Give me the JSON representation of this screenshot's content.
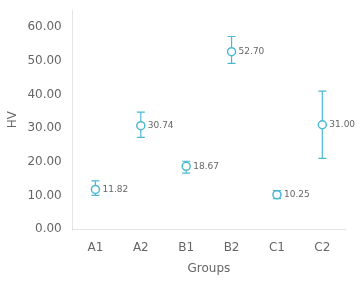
{
  "chart_data": {
    "type": "errorbar",
    "categories": [
      "A1",
      "A2",
      "B1",
      "B2",
      "C1",
      "C2"
    ],
    "values": [
      11.82,
      30.74,
      18.67,
      52.7,
      10.25,
      31.0
    ],
    "value_labels": [
      "11.82",
      "30.74",
      "18.67",
      "52.70",
      "10.25",
      "31.00"
    ],
    "errors_low": [
      1.8,
      3.5,
      2.0,
      3.5,
      1.2,
      10.0
    ],
    "errors_high": [
      2.5,
      4.0,
      1.5,
      4.5,
      1.2,
      10.0
    ],
    "xlabel": "Groups",
    "ylabel": "HV",
    "ylim": [
      0.0,
      65.0
    ],
    "yticks": [
      {
        "value": 0,
        "label": "0.00"
      },
      {
        "value": 10,
        "label": "10.00"
      },
      {
        "value": 20,
        "label": "20.00"
      },
      {
        "value": 30,
        "label": "30.00"
      },
      {
        "value": 40,
        "label": "40.00"
      },
      {
        "value": 50,
        "label": "50.00"
      },
      {
        "value": 60,
        "label": "60.00"
      }
    ],
    "color": "#4db8d4",
    "marker": "circle",
    "data_labels": true,
    "grid": false
  }
}
